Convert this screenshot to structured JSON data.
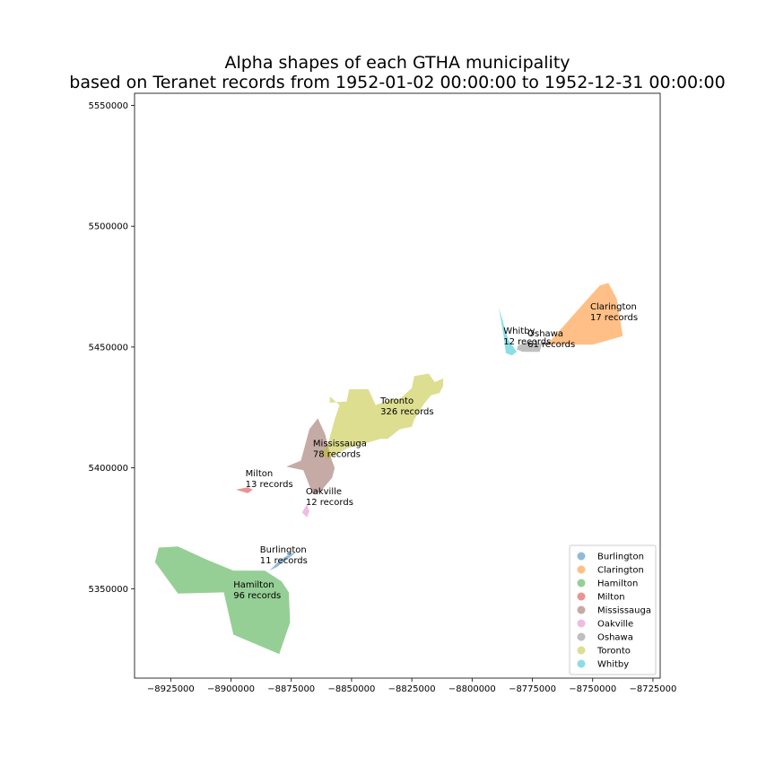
{
  "chart_data": {
    "type": "area",
    "title": "Alpha shapes of each GTHA municipality",
    "subtitle": "based on Teranet records from 1952-01-02 00:00:00 to 1952-12-31 00:00:00",
    "xlabel": "",
    "ylabel": "",
    "xlim": [
      -8940000,
      -8722000
    ],
    "ylim": [
      5313000,
      5555000
    ],
    "xticks": [
      -8925000,
      -8900000,
      -8875000,
      -8850000,
      -8825000,
      -8800000,
      -8775000,
      -8750000,
      -8725000
    ],
    "xtick_labels": [
      "−8925000",
      "−8900000",
      "−8875000",
      "−8850000",
      "−8825000",
      "−8800000",
      "−8775000",
      "−8750000",
      "−8725000"
    ],
    "yticks": [
      5350000,
      5400000,
      5450000,
      5500000,
      5550000
    ],
    "ytick_labels": [
      "5350000",
      "5400000",
      "5450000",
      "5500000",
      "5550000"
    ],
    "grid": false,
    "legend_position": "lower right",
    "series": [
      {
        "name": "Burlington",
        "color": "#1f77b4",
        "label": [
          "Burlington",
          "11 records"
        ],
        "label_pos": [
          -8888000,
          5365000
        ],
        "polygon": [
          [
            -8884000,
            5357500
          ],
          [
            -8880000,
            5361500
          ],
          [
            -8875500,
            5364500
          ],
          [
            -8873000,
            5365000
          ],
          [
            -8877000,
            5362000
          ],
          [
            -8881000,
            5359000
          ]
        ]
      },
      {
        "name": "Clarington",
        "color": "#ff7f0e",
        "label": [
          "Clarington",
          "17 records"
        ],
        "label_pos": [
          -8751000,
          5465500
        ],
        "polygon": [
          [
            -8768000,
            5452000
          ],
          [
            -8752000,
            5470000
          ],
          [
            -8747000,
            5475500
          ],
          [
            -8743500,
            5476500
          ],
          [
            -8740000,
            5470000
          ],
          [
            -8737500,
            5454500
          ],
          [
            -8750000,
            5451000
          ],
          [
            -8763000,
            5451000
          ],
          [
            -8770000,
            5451000
          ]
        ]
      },
      {
        "name": "Hamilton",
        "color": "#2ca02c",
        "label": [
          "Hamilton",
          "96 records"
        ],
        "label_pos": [
          -8899000,
          5350500
        ],
        "polygon": [
          [
            -8930000,
            5367000
          ],
          [
            -8931500,
            5361000
          ],
          [
            -8922000,
            5348000
          ],
          [
            -8903000,
            5348500
          ],
          [
            -8899000,
            5331000
          ],
          [
            -8880000,
            5323000
          ],
          [
            -8875500,
            5336000
          ],
          [
            -8876000,
            5348500
          ],
          [
            -8879000,
            5353000
          ],
          [
            -8886000,
            5357500
          ],
          [
            -8899000,
            5357500
          ],
          [
            -8910000,
            5362000
          ],
          [
            -8922000,
            5367500
          ]
        ]
      },
      {
        "name": "Milton",
        "color": "#d62728",
        "label": [
          "Milton",
          "13 records"
        ],
        "label_pos": [
          -8894000,
          5396500
        ],
        "polygon": [
          [
            -8898000,
            5391000
          ],
          [
            -8893000,
            5392000
          ],
          [
            -8891000,
            5391000
          ],
          [
            -8893000,
            5389500
          ]
        ]
      },
      {
        "name": "Mississauga",
        "color": "#8c564b",
        "label": [
          "Mississauga",
          "78 records"
        ],
        "label_pos": [
          -8866000,
          5409000
        ],
        "polygon": [
          [
            -8877000,
            5400500
          ],
          [
            -8871000,
            5403000
          ],
          [
            -8867500,
            5416000
          ],
          [
            -8864000,
            5420500
          ],
          [
            -8861000,
            5414000
          ],
          [
            -8858500,
            5404000
          ],
          [
            -8857000,
            5400000
          ],
          [
            -8858000,
            5396000
          ],
          [
            -8863000,
            5390000
          ],
          [
            -8866000,
            5389000
          ],
          [
            -8870000,
            5399000
          ]
        ]
      },
      {
        "name": "Oakville",
        "color": "#e377c2",
        "label": [
          "Oakville",
          "12 records"
        ],
        "label_pos": [
          -8869000,
          5389000
        ],
        "polygon": [
          [
            -8870500,
            5381500
          ],
          [
            -8868500,
            5385000
          ],
          [
            -8867500,
            5382000
          ],
          [
            -8868500,
            5379500
          ]
        ]
      },
      {
        "name": "Oshawa",
        "color": "#7f7f7f",
        "label": [
          "Oshawa",
          "61 records"
        ],
        "label_pos": [
          -8777000,
          5454500
        ],
        "polygon": [
          [
            -8781000,
            5450500
          ],
          [
            -8778000,
            5452000
          ],
          [
            -8771000,
            5451500
          ],
          [
            -8772000,
            5448000
          ],
          [
            -8779000,
            5448000
          ],
          [
            -8781500,
            5449000
          ]
        ]
      },
      {
        "name": "Toronto",
        "color": "#bcbd22",
        "label": [
          "Toronto",
          "326 records"
        ],
        "label_pos": [
          -8838000,
          5426500
        ],
        "polygon": [
          [
            -8860000,
            5409000
          ],
          [
            -8857000,
            5420000
          ],
          [
            -8855000,
            5426000
          ],
          [
            -8859000,
            5429500
          ],
          [
            -8859000,
            5427000
          ],
          [
            -8852000,
            5427500
          ],
          [
            -8851000,
            5432500
          ],
          [
            -8843000,
            5432500
          ],
          [
            -8840000,
            5426000
          ],
          [
            -8833000,
            5428500
          ],
          [
            -8830000,
            5428500
          ],
          [
            -8825000,
            5433000
          ],
          [
            -8824000,
            5438000
          ],
          [
            -8818000,
            5439000
          ],
          [
            -8815500,
            5435500
          ],
          [
            -8812000,
            5437000
          ],
          [
            -8812000,
            5434000
          ],
          [
            -8813500,
            5431000
          ],
          [
            -8817000,
            5430000
          ],
          [
            -8820000,
            5426500
          ],
          [
            -8824000,
            5420000
          ],
          [
            -8825000,
            5417000
          ],
          [
            -8830000,
            5416000
          ],
          [
            -8835000,
            5412000
          ],
          [
            -8838000,
            5412000
          ],
          [
            -8845000,
            5410000
          ],
          [
            -8852000,
            5408000
          ],
          [
            -8860000,
            5403500
          ],
          [
            -8863000,
            5406000
          ]
        ]
      },
      {
        "name": "Whitby",
        "color": "#17becf",
        "label": [
          "Whitby",
          "12 records"
        ],
        "label_pos": [
          -8787000,
          5455500
        ],
        "polygon": [
          [
            -8789000,
            5466500
          ],
          [
            -8787000,
            5455000
          ],
          [
            -8786000,
            5447500
          ],
          [
            -8783500,
            5446500
          ],
          [
            -8781500,
            5448000
          ],
          [
            -8785000,
            5453000
          ]
        ]
      }
    ]
  }
}
